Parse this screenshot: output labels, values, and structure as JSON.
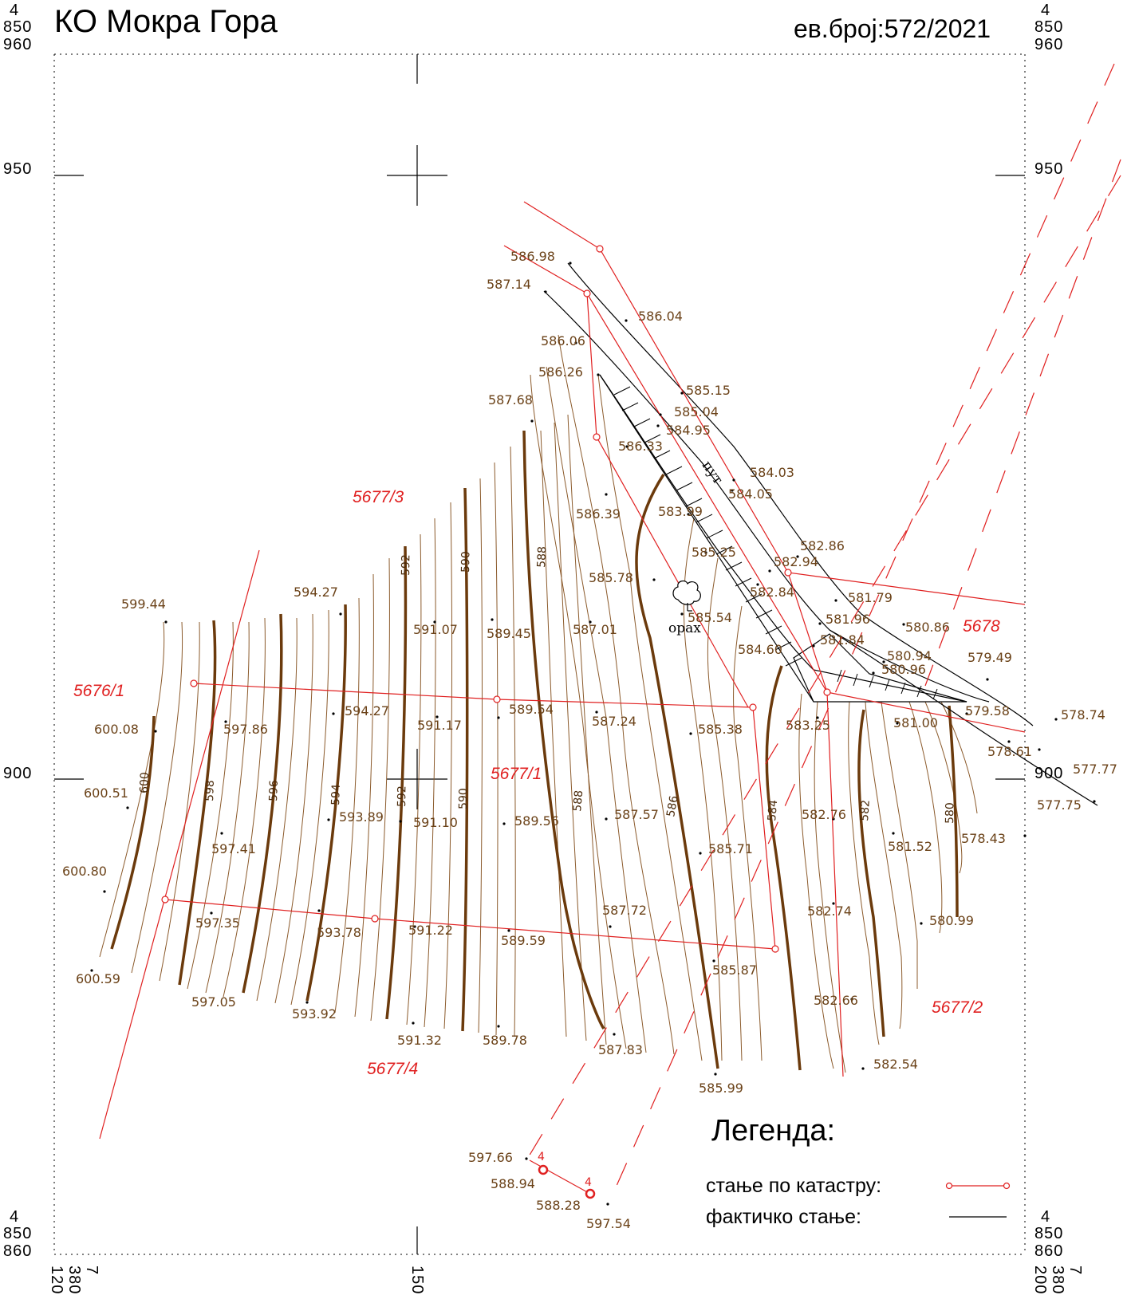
{
  "header": {
    "title": "КО Мокра Гора",
    "record": "ев.број:572/2021"
  },
  "coords": {
    "y_left_top": [
      "4",
      "850",
      "960"
    ],
    "y_right_top": [
      "4",
      "850",
      "960"
    ],
    "y_left_bottom": [
      "4",
      "850",
      "860"
    ],
    "y_right_bottom": [
      "4",
      "850",
      "860"
    ],
    "y950_left": "950",
    "y950_right": "950",
    "y900_left": "900",
    "y900_right": "900",
    "x_left": [
      "7",
      "380",
      "120"
    ],
    "x_mid": "150",
    "x_right": [
      "7",
      "380",
      "200"
    ]
  },
  "parcels": [
    "5677/3",
    "5676/1",
    "5677/1",
    "5678",
    "5677/2",
    "5677/4"
  ],
  "elevations": [
    "586.98",
    "587.14",
    "586.04",
    "586.06",
    "586.26",
    "585.15",
    "587.68",
    "585.04",
    "584.95",
    "586.33",
    "584.03",
    "584.05",
    "586.39",
    "583.99",
    "582.86",
    "585.25",
    "582.94",
    "585.78",
    "594.27",
    "582.84",
    "581.79",
    "599.44",
    "585.54",
    "591.07",
    "589.45",
    "587.01",
    "581.96",
    "580.86",
    "581.84",
    "584.60",
    "580.94",
    "579.49",
    "580.96",
    "589.54",
    "594.27",
    "600.08",
    "597.86",
    "591.17",
    "587.24",
    "585.38",
    "583.25",
    "581.00",
    "579.58",
    "578.74",
    "578.61",
    "577.77",
    "600.51",
    "593.89",
    "591.10",
    "589.56",
    "587.57",
    "582.76",
    "577.75",
    "597.41",
    "585.71",
    "581.52",
    "578.43",
    "600.80",
    "587.72",
    "582.74",
    "580.99",
    "597.35",
    "593.78",
    "591.22",
    "589.59",
    "585.87",
    "600.59",
    "597.05",
    "593.92",
    "582.66",
    "591.32",
    "589.78",
    "587.83",
    "582.54",
    "585.99",
    "597.66",
    "588.94",
    "588.28",
    "597.54"
  ],
  "contour_labels": [
    "600",
    "598",
    "596",
    "594",
    "592",
    "590",
    "588",
    "586",
    "584",
    "582",
    "580",
    "592",
    "590",
    "588"
  ],
  "features": {
    "road": "пут",
    "tree": "орах",
    "markers": [
      "4",
      "4"
    ]
  },
  "legend": {
    "title": "Легенда:",
    "cadastre": "стање по катастру:",
    "actual": "фактичко стање:"
  },
  "colors": {
    "cadastre_line": "#e02020",
    "actual_line": "#000000",
    "contour_index": "#6b3a0c",
    "contour_minor": "#8b5a2b",
    "elevation_text": "#6b4218"
  }
}
